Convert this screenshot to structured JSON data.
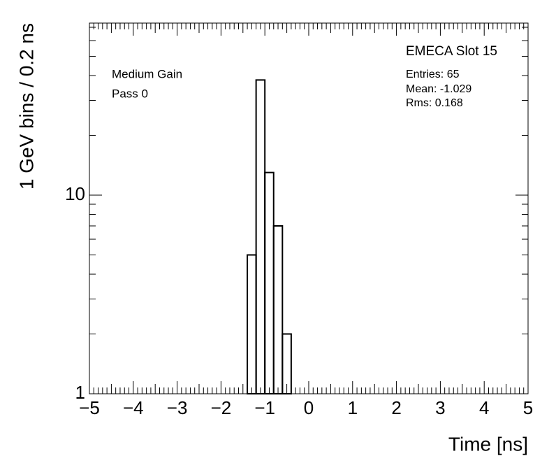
{
  "chart_data": {
    "type": "histogram",
    "title": "EMECA Slot 15",
    "annotations": [
      "Medium Gain",
      "Pass 0",
      "Entries: 65",
      "Mean: -1.029",
      "Rms: 0.168"
    ],
    "x_label": "Time [ns]",
    "y_label": "1 GeV bins / 0.2 ns",
    "bins": [
      -1.4,
      -1.2,
      -1.0,
      -0.8,
      -0.6,
      -0.4
    ],
    "values": [
      5,
      38,
      13,
      7,
      2
    ],
    "color": "#000000",
    "xlim": [
      -5,
      5
    ],
    "xticks": [
      {
        "value": -5,
        "label": "−5"
      },
      {
        "value": -4,
        "label": "−4"
      },
      {
        "value": -3,
        "label": "−3"
      },
      {
        "value": -2,
        "label": "−2"
      },
      {
        "value": -1,
        "label": "−1"
      },
      0,
      1,
      2,
      3,
      4,
      5
    ],
    "ylim": [
      1,
      73.5
    ],
    "yticks": [
      1,
      10
    ],
    "log_y": true
  }
}
